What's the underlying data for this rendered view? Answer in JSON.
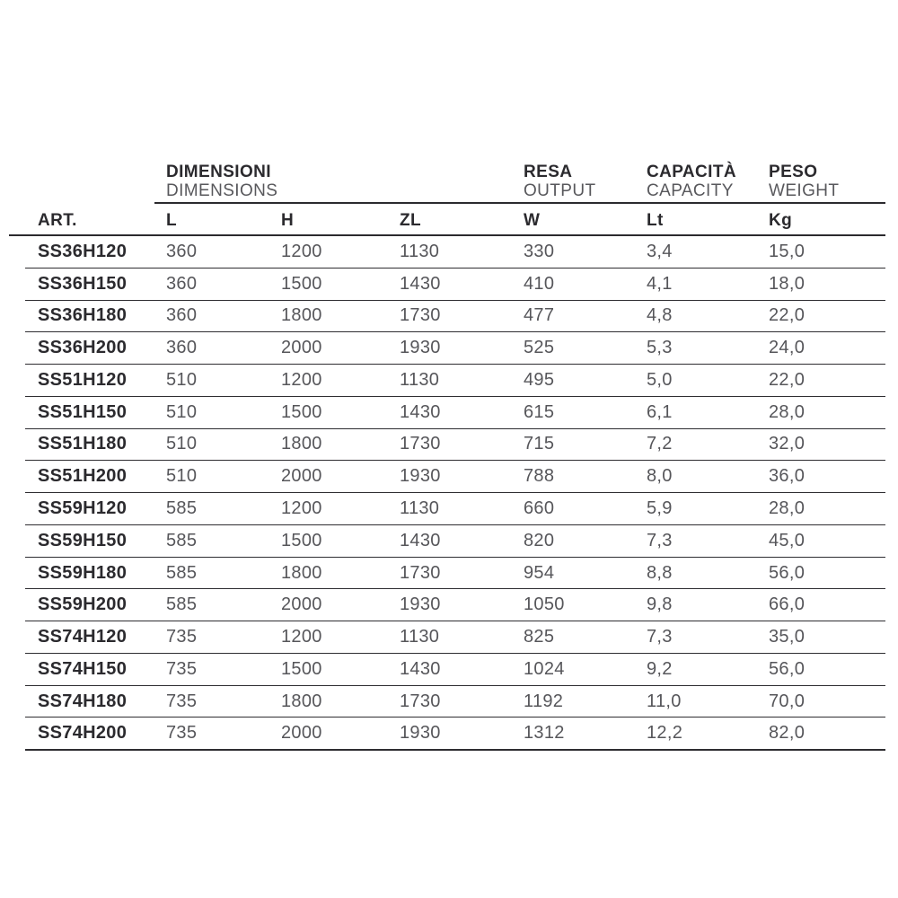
{
  "table": {
    "groups": [
      {
        "primary": "DIMENSIONI",
        "secondary": "DIMENSIONS"
      },
      {
        "primary": "RESA",
        "secondary": "OUTPUT"
      },
      {
        "primary": "CAPACITÀ",
        "secondary": "CAPACITY"
      },
      {
        "primary": "PESO",
        "secondary": "WEIGHT"
      }
    ],
    "columns": [
      "ART.",
      "L",
      "H",
      "ZL",
      "W",
      "Lt",
      "Kg"
    ],
    "rows": [
      [
        "SS36H120",
        "360",
        "1200",
        "1130",
        "330",
        "3,4",
        "15,0"
      ],
      [
        "SS36H150",
        "360",
        "1500",
        "1430",
        "410",
        "4,1",
        "18,0"
      ],
      [
        "SS36H180",
        "360",
        "1800",
        "1730",
        "477",
        "4,8",
        "22,0"
      ],
      [
        "SS36H200",
        "360",
        "2000",
        "1930",
        "525",
        "5,3",
        "24,0"
      ],
      [
        "SS51H120",
        "510",
        "1200",
        "1130",
        "495",
        "5,0",
        "22,0"
      ],
      [
        "SS51H150",
        "510",
        "1500",
        "1430",
        "615",
        "6,1",
        "28,0"
      ],
      [
        "SS51H180",
        "510",
        "1800",
        "1730",
        "715",
        "7,2",
        "32,0"
      ],
      [
        "SS51H200",
        "510",
        "2000",
        "1930",
        "788",
        "8,0",
        "36,0"
      ],
      [
        "SS59H120",
        "585",
        "1200",
        "1130",
        "660",
        "5,9",
        "28,0"
      ],
      [
        "SS59H150",
        "585",
        "1500",
        "1430",
        "820",
        "7,3",
        "45,0"
      ],
      [
        "SS59H180",
        "585",
        "1800",
        "1730",
        "954",
        "8,8",
        "56,0"
      ],
      [
        "SS59H200",
        "585",
        "2000",
        "1930",
        "1050",
        "9,8",
        "66,0"
      ],
      [
        "SS74H120",
        "735",
        "1200",
        "1130",
        "825",
        "7,3",
        "35,0"
      ],
      [
        "SS74H150",
        "735",
        "1500",
        "1430",
        "1024",
        "9,2",
        "56,0"
      ],
      [
        "SS74H180",
        "735",
        "1800",
        "1730",
        "1192",
        "11,0",
        "70,0"
      ],
      [
        "SS74H200",
        "735",
        "2000",
        "1930",
        "1312",
        "12,2",
        "82,0"
      ]
    ]
  },
  "colors": {
    "dark_text": "#2b2a2e",
    "grey_text": "#56565a",
    "rule": "#2b2a2e",
    "background": "#ffffff"
  }
}
